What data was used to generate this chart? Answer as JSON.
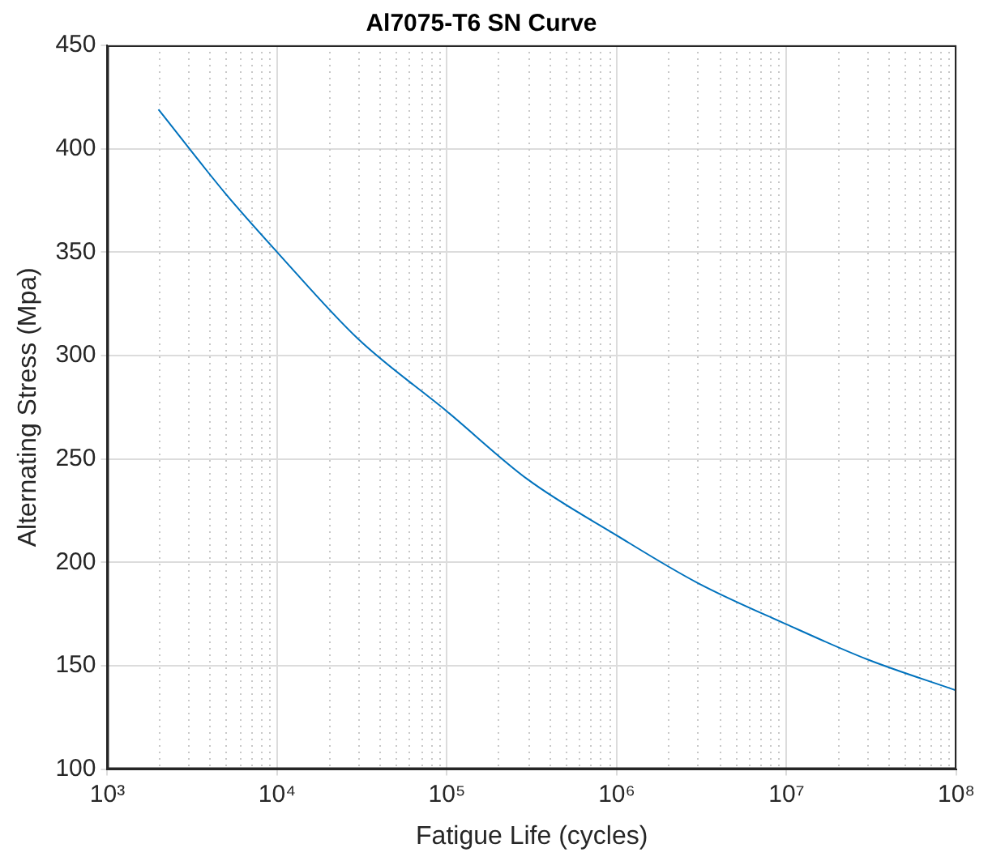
{
  "chart_data": {
    "type": "line",
    "title": "Al7075-T6 SN Curve",
    "xlabel": "Fatigue Life (cycles)",
    "ylabel": "Alternating Stress (Mpa)",
    "x": [
      2000,
      5000,
      10000,
      30000,
      100000,
      300000,
      1000000,
      3000000,
      10000000,
      30000000,
      100000000
    ],
    "series": [
      {
        "color": "#0072bd",
        "values": [
          419,
          378,
          350,
          308,
          273,
          240,
          213,
          190,
          170,
          153,
          138
        ]
      }
    ],
    "log": "x",
    "xlim": [
      1000,
      100000000
    ],
    "xticks": [
      {
        "value": 1000,
        "label": "10³"
      },
      {
        "value": 10000,
        "label": "10⁴"
      },
      {
        "value": 100000,
        "label": "10⁵"
      },
      {
        "value": 1000000,
        "label": "10⁶"
      },
      {
        "value": 10000000,
        "label": "10⁷"
      },
      {
        "value": 100000000,
        "label": "10⁸"
      }
    ],
    "ylim": [
      100,
      450
    ],
    "yticks": [
      100,
      150,
      200,
      250,
      300,
      350,
      400,
      450
    ],
    "grid": true,
    "marker": "none",
    "line_style": "solid",
    "legend": false
  }
}
